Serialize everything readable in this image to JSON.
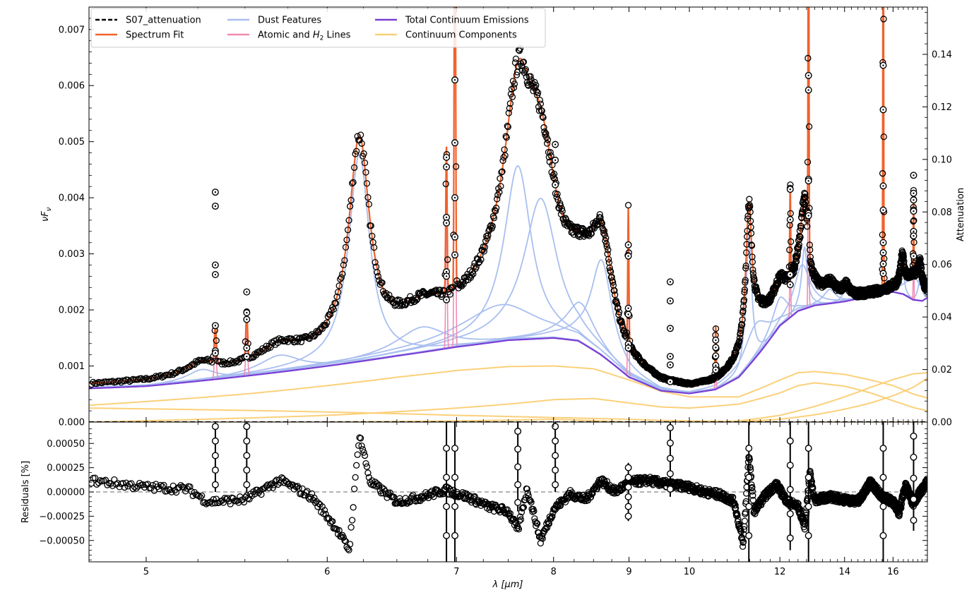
{
  "chart_data": [
    {
      "type": "line",
      "panel": "main",
      "ylabel": "νF_ν",
      "y2label": "Attenuation",
      "xlabel": "",
      "xscale": "reciprocal",
      "xlim": [
        4.75,
        17.8
      ],
      "ylim": [
        0,
        0.0074
      ],
      "y2lim": [
        0,
        0.158
      ],
      "xticks": [
        5,
        6,
        7,
        8,
        9,
        10,
        12,
        14,
        16
      ],
      "yticks": [
        0.0,
        0.001,
        0.002,
        0.003,
        0.004,
        0.005,
        0.006,
        0.007
      ],
      "ytick_labels": [
        "0.000",
        "0.001",
        "0.002",
        "0.003",
        "0.004",
        "0.005",
        "0.006",
        "0.007"
      ],
      "y2ticks": [
        0.0,
        0.02,
        0.04,
        0.06,
        0.08,
        0.1,
        0.12,
        0.14
      ],
      "y2tick_labels": [
        "0.00",
        "0.02",
        "0.04",
        "0.06",
        "0.08",
        "0.10",
        "0.12",
        "0.14"
      ],
      "legend": {
        "placement": "top-left",
        "entries": [
          {
            "label": "S07_attenuation",
            "color": "#000000",
            "style": "dashed"
          },
          {
            "label": "Spectrum Fit",
            "color": "#f0622a",
            "style": "solid"
          },
          {
            "label": "Dust Features",
            "color": "#a9bff0",
            "style": "solid"
          },
          {
            "label_pre": "Atomic and ",
            "label_italic": "H",
            "label_sub": "2",
            "label_post": " Lines",
            "color": "#f08cb4",
            "style": "solid"
          },
          {
            "label": "Total Continuum Emissions",
            "color": "#7a3ed6",
            "style": "solid"
          },
          {
            "label": "Continuum Components",
            "color": "#fbd07a",
            "style": "solid"
          }
        ]
      },
      "colors": {
        "data": "#000000",
        "fit": "#f0622a",
        "dust": "#a9bff0",
        "lines": "#f08cb4",
        "continuum": "#7a3ed6",
        "components": "#fbd07a"
      },
      "continuum": {
        "x": [
          4.75,
          5.0,
          5.5,
          6.0,
          6.5,
          7.0,
          7.5,
          8.0,
          8.3,
          8.6,
          9.0,
          9.5,
          10.0,
          10.5,
          11.0,
          11.5,
          12.0,
          12.5,
          13.0,
          14.0,
          15.0,
          16.0,
          16.5,
          17.0,
          17.5,
          17.8
        ],
        "y": [
          0.0006,
          0.00064,
          0.00082,
          0.001,
          0.00118,
          0.00134,
          0.00146,
          0.0015,
          0.00145,
          0.0012,
          0.0008,
          0.00056,
          0.00051,
          0.00058,
          0.0008,
          0.00125,
          0.00172,
          0.00198,
          0.00208,
          0.00215,
          0.00225,
          0.00232,
          0.00228,
          0.00218,
          0.00216,
          0.00222
        ]
      },
      "components": [
        {
          "x": [
            4.75,
            5.5,
            6.0,
            6.5,
            7.0,
            7.5,
            8.0,
            8.5,
            9.0,
            9.5,
            10.0,
            11.0,
            12.0,
            12.5,
            13.0,
            14.0,
            15.0,
            16.0,
            17.0,
            17.8
          ],
          "y": [
            0.0003,
            0.0005,
            0.00065,
            0.0008,
            0.00092,
            0.00099,
            0.001,
            0.00095,
            0.00075,
            0.00055,
            0.00045,
            0.00045,
            0.00075,
            0.00088,
            0.0009,
            0.00085,
            0.00075,
            0.00065,
            0.0005,
            0.00043
          ]
        },
        {
          "x": [
            4.75,
            6.0,
            7.0,
            8.0,
            9.0,
            9.5,
            10.0,
            11.0,
            12.0,
            13.0,
            14.0,
            15.0,
            16.0,
            17.0,
            17.8
          ],
          "y": [
            0.00025,
            0.00018,
            0.00012,
            8e-05,
            5e-05,
            3e-05,
            2e-05,
            1e-05,
            0.0,
            0.0,
            0.0,
            0.0,
            0.0,
            0.0,
            0.0
          ]
        },
        {
          "x": [
            4.75,
            6.0,
            7.0,
            7.5,
            8.0,
            8.5,
            9.0,
            9.5,
            10.0,
            11.0,
            12.0,
            12.5,
            13.0,
            14.0,
            15.0,
            16.0,
            17.0,
            17.8
          ],
          "y": [
            0.0,
            0.00012,
            0.00025,
            0.00032,
            0.0004,
            0.00042,
            0.00034,
            0.00027,
            0.00025,
            0.00032,
            0.00052,
            0.00065,
            0.0007,
            0.00064,
            0.00052,
            0.00038,
            0.00026,
            0.0002
          ]
        },
        {
          "x": [
            4.75,
            6.0,
            7.0,
            8.0,
            9.0,
            10.0,
            11.0,
            12.0,
            13.0,
            14.0,
            15.0,
            16.0,
            17.0,
            17.8
          ],
          "y": [
            0.0,
            0.0,
            2e-05,
            5e-05,
            0.0,
            0.0,
            2e-05,
            0.00012,
            0.00028,
            0.00045,
            0.00062,
            0.00076,
            0.00086,
            0.00088
          ]
        },
        {
          "x": [
            4.75,
            8.0,
            10.0,
            11.0,
            12.0,
            13.0,
            14.0,
            15.0,
            16.0,
            17.0,
            17.8
          ],
          "y": [
            0.0,
            0.0,
            0.0,
            1e-05,
            5e-05,
            0.00013,
            0.00023,
            0.00034,
            0.00047,
            0.00062,
            0.00078
          ]
        }
      ],
      "dust_profiles": [
        {
          "center": 5.27,
          "fwhm": 0.18,
          "peak": 0.0002
        },
        {
          "center": 5.7,
          "fwhm": 0.3,
          "peak": 0.0003
        },
        {
          "center": 6.22,
          "fwhm": 0.18,
          "peak": 0.0037
        },
        {
          "center": 6.7,
          "fwhm": 0.5,
          "peak": 0.00045
        },
        {
          "center": 7.42,
          "fwhm": 0.95,
          "peak": 0.00065
        },
        {
          "center": 7.6,
          "fwhm": 0.35,
          "peak": 0.0031
        },
        {
          "center": 7.85,
          "fwhm": 0.45,
          "peak": 0.0025
        },
        {
          "center": 8.33,
          "fwhm": 0.45,
          "peak": 0.0007
        },
        {
          "center": 8.61,
          "fwhm": 0.35,
          "peak": 0.0017
        },
        {
          "center": 11.23,
          "fwhm": 0.16,
          "peak": 0.0023
        },
        {
          "center": 11.4,
          "fwhm": 0.7,
          "peak": 0.0006
        },
        {
          "center": 12.0,
          "fwhm": 0.5,
          "peak": 0.0005
        },
        {
          "center": 12.62,
          "fwhm": 0.55,
          "peak": 0.0008
        },
        {
          "center": 12.69,
          "fwhm": 0.2,
          "peak": 0.0011
        },
        {
          "center": 13.48,
          "fwhm": 0.5,
          "peak": 0.00025
        },
        {
          "center": 14.04,
          "fwhm": 0.3,
          "peak": 0.0002
        },
        {
          "center": 16.45,
          "fwhm": 0.2,
          "peak": 0.00055
        },
        {
          "center": 17.04,
          "fwhm": 1.0,
          "peak": 0.0004
        },
        {
          "center": 17.38,
          "fwhm": 0.25,
          "peak": 0.0004
        }
      ],
      "lines": [
        {
          "center": 5.34,
          "peak": 0.00065,
          "fwhm": 0.012
        },
        {
          "center": 5.51,
          "peak": 0.0008,
          "fwhm": 0.012
        },
        {
          "center": 6.91,
          "peak": 0.0026,
          "fwhm": 0.014
        },
        {
          "center": 6.985,
          "peak": 0.0085,
          "fwhm": 0.014
        },
        {
          "center": 8.99,
          "peak": 0.0024,
          "fwhm": 0.02
        },
        {
          "center": 9.66,
          "peak": 0.0,
          "fwhm": 0.02
        },
        {
          "center": 10.51,
          "peak": 0.00092,
          "fwhm": 0.022
        },
        {
          "center": 12.28,
          "peak": 0.0016,
          "fwhm": 0.03
        },
        {
          "center": 12.81,
          "peak": 0.008,
          "fwhm": 0.03
        },
        {
          "center": 15.55,
          "peak": 0.008,
          "fwhm": 0.04
        },
        {
          "center": 17.03,
          "peak": 0.0014,
          "fwhm": 0.04
        }
      ],
      "outliers": [
        {
          "x": 5.34,
          "y": [
            0.0041,
            0.00385,
            0.0028,
            0.00263,
            0.00172,
            0.00127,
            0.00123
          ]
        },
        {
          "x": 5.51,
          "y": [
            0.00232,
            0.00195,
            0.00183,
            0.00132,
            0.00117
          ]
        },
        {
          "x": 6.91,
          "y": [
            0.00472,
            0.00455,
            0.00365,
            0.00355,
            0.00268,
            0.0026,
            0.00218
          ]
        },
        {
          "x": 6.985,
          "y": [
            0.0061,
            0.00498,
            0.004,
            0.0033,
            0.00298
          ]
        },
        {
          "x": 8.99,
          "y": [
            0.00316,
            0.00296,
            0.00203,
            0.00192,
            0.00139,
            0.00132
          ]
        },
        {
          "x": 9.66,
          "y": [
            0.0025,
            0.00216,
            0.00167,
            0.00117,
            0.00102,
            0.00072
          ]
        },
        {
          "x": 10.51,
          "y": [
            0.00146,
            0.00133,
            0.00118,
            0.00101,
            0.00093
          ]
        },
        {
          "x": 12.28,
          "y": [
            0.00415,
            0.00361,
            0.00263,
            0.00245
          ]
        },
        {
          "x": 12.81,
          "y": [
            0.00618,
            0.00592,
            0.00433,
            0.0043,
            0.00372,
            0.00368
          ]
        },
        {
          "x": 15.55,
          "y": [
            0.00636,
            0.00557,
            0.00421,
            0.00378,
            0.0032,
            0.00302,
            0.00282,
            0.00265
          ]
        },
        {
          "x": 17.03,
          "y": [
            0.0044,
            0.00408,
            0.00396,
            0.00378,
            0.00376,
            0.0034,
            0.00332,
            0.00296
          ]
        },
        {
          "x": 8.02,
          "y": [
            0.00495,
            0.00467,
            0.00423
          ]
        }
      ],
      "y2_attenuation": {
        "x": [
          4.75,
          17.8
        ],
        "y": [
          0.0,
          0.0
        ]
      }
    },
    {
      "type": "line",
      "panel": "residuals",
      "xlabel": "λ [μm]",
      "ylabel": "Residuals [%]",
      "xscale": "reciprocal",
      "xlim": [
        4.75,
        17.8
      ],
      "ylim": [
        -0.00072,
        0.00072
      ],
      "xticks": [
        5,
        6,
        7,
        8,
        9,
        10,
        12,
        14,
        16
      ],
      "yticks": [
        -0.0005,
        -0.00025,
        0.0,
        0.00025,
        0.0005
      ],
      "ytick_labels": [
        "−0.00050",
        "−0.00025",
        "0.00000",
        "0.00025",
        "0.00050"
      ],
      "zero_line": {
        "y": 0.0,
        "style": "dashed",
        "color": "#888888"
      },
      "residuals": {
        "x": [
          4.75,
          5.0,
          5.2,
          5.3,
          5.5,
          5.7,
          5.9,
          6.05,
          6.15,
          6.22,
          6.3,
          6.5,
          6.7,
          6.9,
          7.1,
          7.3,
          7.5,
          7.6,
          7.7,
          7.85,
          8.0,
          8.2,
          8.4,
          8.6,
          8.8,
          9.0,
          9.3,
          9.6,
          10.0,
          10.3,
          10.6,
          10.9,
          11.1,
          11.23,
          11.35,
          11.6,
          11.9,
          12.2,
          12.5,
          12.7,
          12.85,
          13.0,
          13.5,
          14.0,
          14.5,
          15.0,
          15.5,
          16.0,
          16.3,
          16.6,
          17.0,
          17.4,
          17.8
        ],
        "y": [
          0.00012,
          5e-05,
          3e-05,
          -0.0001,
          -8e-05,
          0.00012,
          -5e-05,
          -0.00035,
          -0.0006,
          0.0006,
          0.0001,
          -0.0001,
          -5e-05,
          2e-05,
          -5e-05,
          -0.00015,
          -0.0002,
          -0.0004,
          4e-05,
          -0.0005,
          -0.00018,
          -2e-05,
          -8e-05,
          0.00012,
          0.0,
          0.0001,
          0.00012,
          8e-05,
          5e-05,
          0.0,
          -3e-05,
          -0.0001,
          -0.00055,
          0.0004,
          -0.0002,
          -5e-05,
          8e-05,
          -0.0001,
          -0.00015,
          -0.00035,
          0.0002,
          -8e-05,
          -5e-05,
          -8e-05,
          -0.0001,
          0.0001,
          -5e-05,
          -0.0001,
          -0.00022,
          8e-05,
          -0.00012,
          0.0,
          0.0001
        ]
      },
      "spikes": [
        {
          "x": 5.34,
          "ymin": 0.0,
          "ymax": 0.0009
        },
        {
          "x": 5.51,
          "ymin": 0.0,
          "ymax": 0.0009
        },
        {
          "x": 6.91,
          "ymin": -0.0009,
          "ymax": 0.0009
        },
        {
          "x": 6.985,
          "ymin": -0.0009,
          "ymax": 0.0009
        },
        {
          "x": 7.6,
          "ymin": -0.0002,
          "ymax": 0.0009
        },
        {
          "x": 8.02,
          "ymin": 0.0,
          "ymax": 0.0009
        },
        {
          "x": 8.99,
          "ymin": -0.0003,
          "ymax": 0.0003
        },
        {
          "x": 9.66,
          "ymin": -5e-05,
          "ymax": 0.0009
        },
        {
          "x": 11.23,
          "ymin": -0.0009,
          "ymax": 0.0009
        },
        {
          "x": 12.28,
          "ymin": -0.0006,
          "ymax": 0.0009
        },
        {
          "x": 12.81,
          "ymin": -0.0009,
          "ymax": 0.0009
        },
        {
          "x": 15.55,
          "ymin": -0.0009,
          "ymax": 0.0009
        },
        {
          "x": 17.03,
          "ymin": -0.0004,
          "ymax": 0.0009
        }
      ]
    }
  ]
}
